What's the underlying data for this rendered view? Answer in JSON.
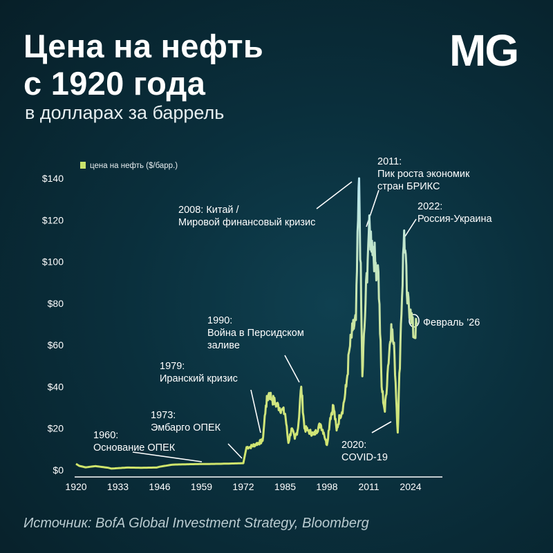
{
  "header": {
    "title_line1": "Цена на нефть",
    "title_line2": "с 1920 года",
    "subtitle": "в долларах за баррель",
    "logo": "MG"
  },
  "footer": {
    "source": "Источник: BofA Global Investment Strategy, Bloomberg"
  },
  "chart_data": {
    "type": "line",
    "title": "Цена на нефть с 1920 года",
    "subtitle": "в долларах за баррель",
    "legend": "цена на нефть ($/барр.)",
    "legend_position": "top-left",
    "grid": false,
    "xlim": [
      1920,
      2026
    ],
    "ylim": [
      0,
      140
    ],
    "x_ticks": [
      "1920",
      "1933",
      "1946",
      "1959",
      "1972",
      "1985",
      "1998",
      "2011",
      "2024"
    ],
    "y_ticks": [
      "$0",
      "$20",
      "$40",
      "$60",
      "$80",
      "$100",
      "$120",
      "$140"
    ],
    "colors": {
      "line_low": "#c9e26b",
      "line_high": "#bfe8ef",
      "axis": "#ffffff"
    },
    "series": [
      {
        "name": "цена на нефть ($/барр.)",
        "x": [
          1920,
          1921,
          1923,
          1926,
          1930,
          1931,
          1933,
          1936,
          1940,
          1945,
          1946,
          1948,
          1950,
          1955,
          1960,
          1965,
          1970,
          1972,
          1973,
          1974,
          1976,
          1978,
          1979,
          1980,
          1981,
          1982,
          1984,
          1985,
          1986,
          1987,
          1988,
          1989,
          1990,
          1991,
          1992,
          1994,
          1996,
          1997,
          1998,
          1999,
          2000,
          2001,
          2002,
          2003,
          2004,
          2005,
          2006,
          2007,
          2008,
          2009,
          2010,
          2011,
          2012,
          2013,
          2014,
          2015,
          2016,
          2017,
          2018,
          2019,
          2020,
          2021,
          2022,
          2023,
          2024,
          2025,
          2026
        ],
        "y": [
          3,
          2,
          1.3,
          1.9,
          1.1,
          0.7,
          0.9,
          1.2,
          1.1,
          1.2,
          1.6,
          2.1,
          2.6,
          2.8,
          2.9,
          3.0,
          3.2,
          3.3,
          11,
          11,
          12.5,
          14,
          31,
          37,
          34,
          32,
          29,
          27,
          13,
          20,
          15,
          20,
          40,
          20,
          19,
          17,
          22,
          18,
          12,
          25,
          31,
          19,
          26,
          30,
          40,
          58,
          67,
          72,
          140,
          45,
          80,
          114,
          110,
          100,
          95,
          40,
          28,
          50,
          70,
          55,
          18,
          70,
          115,
          80,
          77,
          64,
          70
        ]
      }
    ],
    "annotations": [
      {
        "x": 1960,
        "lines": [
          "1960:",
          "Основание ОПЕК"
        ]
      },
      {
        "x": 1973,
        "lines": [
          "1973:",
          "Эмбарго ОПЕК"
        ]
      },
      {
        "x": 1979,
        "lines": [
          "1979:",
          "Иранский кризис"
        ]
      },
      {
        "x": 1990,
        "lines": [
          "1990:",
          "Война в Персидском",
          "заливе"
        ]
      },
      {
        "x": 2008,
        "lines": [
          "2008: Китай /",
          "Мировой финансовый кризис"
        ]
      },
      {
        "x": 2011,
        "lines": [
          "2011:",
          "Пик роста экономик",
          "стран БРИКС"
        ]
      },
      {
        "x": 2020,
        "lines": [
          "2020:",
          "COVID-19"
        ]
      },
      {
        "x": 2022,
        "lines": [
          "2022:",
          "Россия-Украина"
        ]
      },
      {
        "x": 2026,
        "lines": [
          "Февраль ’26"
        ]
      }
    ]
  }
}
